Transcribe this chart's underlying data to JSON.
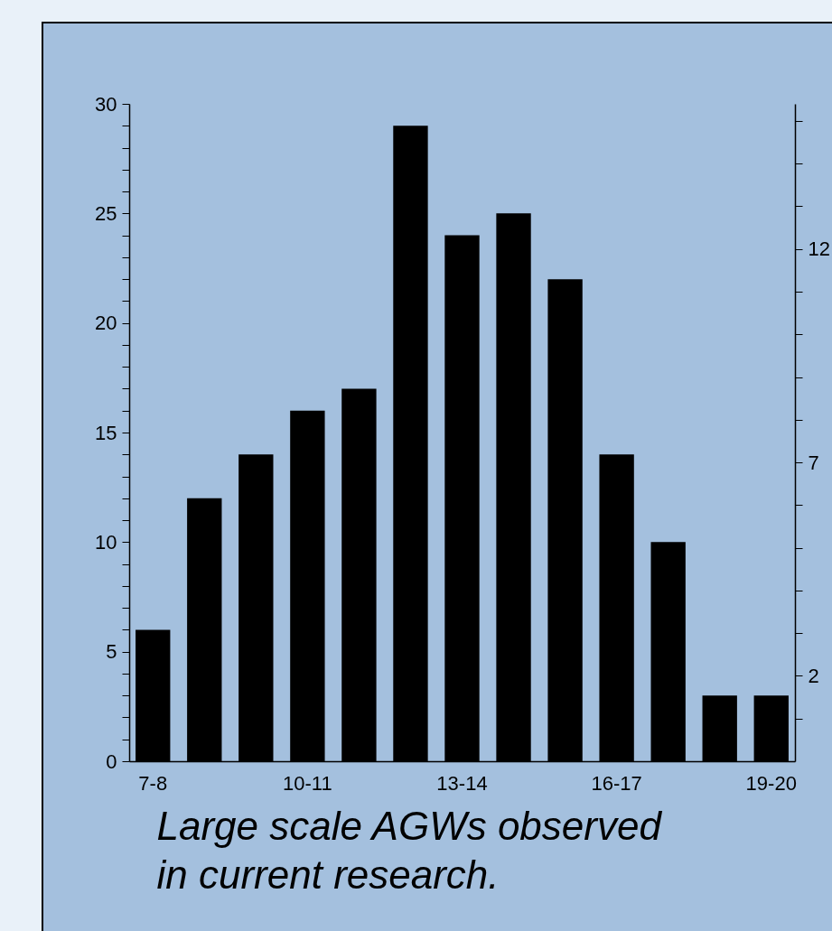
{
  "chart_data": {
    "type": "bar",
    "xlabel": "Large scale AGWs observed in current research.",
    "categories": [
      "7-8",
      null,
      null,
      "10-11",
      null,
      null,
      "13-14",
      null,
      null,
      "16-17",
      null,
      null,
      "19-20"
    ],
    "values": [
      6,
      12,
      14,
      16,
      17,
      29,
      24,
      25,
      22,
      14,
      10,
      3,
      3
    ],
    "color": "#000000",
    "ylim": [
      0,
      30
    ],
    "yticks": [
      0,
      {
        "value": 1,
        "label": null
      },
      {
        "value": 2,
        "label": null
      },
      {
        "value": 3,
        "label": null
      },
      {
        "value": 4,
        "label": null
      },
      5,
      {
        "value": 6,
        "label": null
      },
      {
        "value": 7,
        "label": null
      },
      {
        "value": 8,
        "label": null
      },
      {
        "value": 9,
        "label": null
      },
      10,
      {
        "value": 11,
        "label": null
      },
      {
        "value": 12,
        "label": null
      },
      {
        "value": 13,
        "label": null
      },
      {
        "value": 14,
        "label": null
      },
      15,
      {
        "value": 16,
        "label": null
      },
      {
        "value": 17,
        "label": null
      },
      {
        "value": 18,
        "label": null
      },
      {
        "value": 19,
        "label": null
      },
      20,
      {
        "value": 21,
        "label": null
      },
      {
        "value": 22,
        "label": null
      },
      {
        "value": 23,
        "label": null
      },
      {
        "value": 24,
        "label": null
      },
      25,
      {
        "value": 26,
        "label": null
      },
      {
        "value": 27,
        "label": null
      },
      {
        "value": 28,
        "label": null
      },
      {
        "value": 29,
        "label": null
      },
      30
    ],
    "y2lim": [
      0,
      15.4
    ],
    "y2ticks": [
      {
        "value": 1,
        "label": null
      },
      2,
      {
        "value": 3,
        "label": null
      },
      {
        "value": 4,
        "label": null
      },
      {
        "value": 5,
        "label": null
      },
      {
        "value": 6,
        "label": null
      },
      7,
      {
        "value": 8,
        "label": null
      },
      {
        "value": 9,
        "label": null
      },
      {
        "value": 10,
        "label": null
      },
      {
        "value": 11,
        "label": null
      },
      12,
      {
        "value": 13,
        "label": null
      },
      {
        "value": 14,
        "label": null
      },
      {
        "value": 15,
        "label": null
      }
    ],
    "grid": false
  }
}
